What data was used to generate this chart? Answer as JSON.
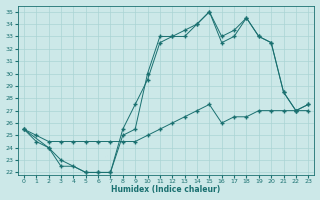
{
  "xlabel": "Humidex (Indice chaleur)",
  "background_color": "#cce8e8",
  "grid_color": "#aad4d4",
  "line_color": "#1a7070",
  "xlim": [
    -0.5,
    23.5
  ],
  "ylim": [
    21.8,
    35.5
  ],
  "yticks": [
    22,
    23,
    24,
    25,
    26,
    27,
    28,
    29,
    30,
    31,
    32,
    33,
    34,
    35
  ],
  "xticks": [
    0,
    1,
    2,
    3,
    4,
    5,
    6,
    7,
    8,
    9,
    10,
    11,
    12,
    13,
    14,
    15,
    16,
    17,
    18,
    19,
    20,
    21,
    22,
    23
  ],
  "line1_x": [
    0,
    1,
    2,
    3,
    4,
    5,
    6,
    7,
    8,
    9,
    10,
    11,
    12,
    13,
    14,
    15,
    16,
    17,
    18,
    19,
    20,
    21,
    22,
    23
  ],
  "line1_y": [
    25.5,
    24.5,
    24.0,
    22.5,
    22.5,
    22.0,
    22.0,
    22.0,
    25.0,
    25.5,
    30.0,
    33.0,
    33.0,
    33.5,
    34.0,
    35.0,
    33.0,
    33.5,
    34.5,
    33.0,
    32.5,
    28.5,
    27.0,
    27.5
  ],
  "line2_x": [
    0,
    2,
    3,
    5,
    6,
    7,
    8,
    9,
    10,
    11,
    12,
    13,
    14,
    15,
    16,
    17,
    18,
    19,
    20,
    21,
    22,
    23
  ],
  "line2_y": [
    25.5,
    24.0,
    23.0,
    22.0,
    22.0,
    22.0,
    25.5,
    27.5,
    29.5,
    32.5,
    33.0,
    33.0,
    34.0,
    35.0,
    32.5,
    33.0,
    34.5,
    33.0,
    32.5,
    28.5,
    27.0,
    27.5
  ],
  "line3_x": [
    0,
    1,
    2,
    3,
    4,
    5,
    6,
    7,
    8,
    9,
    10,
    11,
    12,
    13,
    14,
    15,
    16,
    17,
    18,
    19,
    20,
    21,
    22,
    23
  ],
  "line3_y": [
    25.5,
    25.0,
    24.5,
    24.5,
    24.5,
    24.5,
    24.5,
    24.5,
    24.5,
    24.5,
    25.0,
    25.5,
    26.0,
    26.5,
    27.0,
    27.5,
    26.0,
    26.5,
    26.5,
    27.0,
    27.0,
    27.0,
    27.0,
    27.0
  ]
}
